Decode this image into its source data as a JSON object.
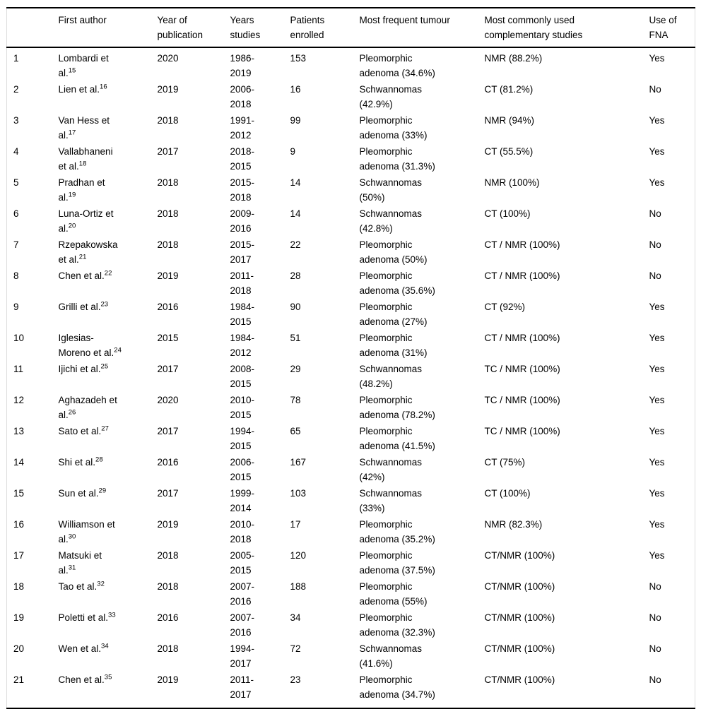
{
  "table": {
    "columns": [
      {
        "label": ""
      },
      {
        "label": "First author"
      },
      {
        "label": "Year of publication"
      },
      {
        "label": "Years studies"
      },
      {
        "label": "Patients enrolled"
      },
      {
        "label": "Most frequent tumour"
      },
      {
        "label": "Most commonly used complementary studies"
      },
      {
        "label": "Use of FNA"
      }
    ],
    "rows": [
      {
        "num": "1",
        "author": "Lombardi et al.",
        "ref": "15",
        "year": "2020",
        "years_studied": "1986-2019",
        "patients": "153",
        "tumour": "Pleomorphic adenoma (34.6%)",
        "complementary": "NMR (88.2%)",
        "fna": "Yes"
      },
      {
        "num": "2",
        "author": "Lien et al.",
        "ref": "16",
        "year": "2019",
        "years_studied": "2006-2018",
        "patients": "16",
        "tumour": "Schwannomas (42.9%)",
        "complementary": "CT (81.2%)",
        "fna": "No"
      },
      {
        "num": "3",
        "author": "Van Hess et al.",
        "ref": "17",
        "year": "2018",
        "years_studied": "1991-2012",
        "patients": "99",
        "tumour": "Pleomorphic adenoma (33%)",
        "complementary": "NMR (94%)",
        "fna": "Yes"
      },
      {
        "num": "4",
        "author": "Vallabhaneni et al.",
        "ref": "18",
        "year": "2017",
        "years_studied": "2018-2015",
        "patients": "9",
        "tumour": "Pleomorphic adenoma (31.3%)",
        "complementary": "CT (55.5%)",
        "fna": "Yes"
      },
      {
        "num": "5",
        "author": "Pradhan et al.",
        "ref": "19",
        "year": "2018",
        "years_studied": "2015-2018",
        "patients": "14",
        "tumour": "Schwannomas (50%)",
        "complementary": "NMR (100%)",
        "fna": "Yes"
      },
      {
        "num": "6",
        "author": "Luna-Ortiz et al.",
        "ref": "20",
        "year": "2018",
        "years_studied": "2009-2016",
        "patients": "14",
        "tumour": "Schwannomas (42.8%)",
        "complementary": "CT (100%)",
        "fna": "No"
      },
      {
        "num": "7",
        "author": "Rzepakowska et al.",
        "ref": "21",
        "year": "2018",
        "years_studied": "2015-2017",
        "patients": "22",
        "tumour": "Pleomorphic adenoma (50%)",
        "complementary": "CT / NMR (100%)",
        "fna": "No"
      },
      {
        "num": "8",
        "author": "Chen et al.",
        "ref": "22",
        "year": "2019",
        "years_studied": "2011-2018",
        "patients": "28",
        "tumour": "Pleomorphic adenoma (35.6%)",
        "complementary": "CT / NMR (100%)",
        "fna": "No"
      },
      {
        "num": "9",
        "author": "Grilli et al.",
        "ref": "23",
        "year": "2016",
        "years_studied": "1984-2015",
        "patients": "90",
        "tumour": "Pleomorphic adenoma (27%)",
        "complementary": "CT (92%)",
        "fna": "Yes"
      },
      {
        "num": "10",
        "author": "Iglesias-Moreno et al.",
        "ref": "24",
        "year": "2015",
        "years_studied": "1984-2012",
        "patients": "51",
        "tumour": "Pleomorphic adenoma (31%)",
        "complementary": "CT / NMR (100%)",
        "fna": "Yes"
      },
      {
        "num": "11",
        "author": "Ijichi et al.",
        "ref": "25",
        "year": "2017",
        "years_studied": "2008-2015",
        "patients": "29",
        "tumour": "Schwannomas (48.2%)",
        "complementary": "TC / NMR (100%)",
        "fna": "Yes"
      },
      {
        "num": "12",
        "author": "Aghazadeh et al.",
        "ref": "26",
        "year": "2020",
        "years_studied": "2010-2015",
        "patients": "78",
        "tumour": "Pleomorphic adenoma (78.2%)",
        "complementary": "TC / NMR (100%)",
        "fna": "Yes"
      },
      {
        "num": "13",
        "author": "Sato et al.",
        "ref": "27",
        "year": "2017",
        "years_studied": "1994-2015",
        "patients": "65",
        "tumour": "Pleomorphic adenoma (41.5%)",
        "complementary": "TC / NMR (100%)",
        "fna": "Yes"
      },
      {
        "num": "14",
        "author": "Shi et al.",
        "ref": "28",
        "year": "2016",
        "years_studied": "2006-2015",
        "patients": "167",
        "tumour": "Schwannomas (42%)",
        "complementary": "CT (75%)",
        "fna": "Yes"
      },
      {
        "num": "15",
        "author": "Sun et al.",
        "ref": "29",
        "year": "2017",
        "years_studied": "1999-2014",
        "patients": "103",
        "tumour": "Schwannomas (33%)",
        "complementary": "CT (100%)",
        "fna": "Yes"
      },
      {
        "num": "16",
        "author": "Williamson et al.",
        "ref": "30",
        "year": "2019",
        "years_studied": "2010-2018",
        "patients": "17",
        "tumour": "Pleomorphic adenoma (35.2%)",
        "complementary": "NMR (82.3%)",
        "fna": "Yes"
      },
      {
        "num": "17",
        "author": "Matsuki et al.",
        "ref": "31",
        "year": "2018",
        "years_studied": "2005-2015",
        "patients": "120",
        "tumour": "Pleomorphic adenoma (37.5%)",
        "complementary": "CT/NMR (100%)",
        "fna": "Yes"
      },
      {
        "num": "18",
        "author": "Tao et al.",
        "ref": "32",
        "year": "2018",
        "years_studied": "2007-2016",
        "patients": "188",
        "tumour": "Pleomorphic adenoma (55%)",
        "complementary": "CT/NMR (100%)",
        "fna": "No"
      },
      {
        "num": "19",
        "author": "Poletti et al.",
        "ref": "33",
        "year": "2016",
        "years_studied": "2007-2016",
        "patients": "34",
        "tumour": "Pleomorphic adenoma (32.3%)",
        "complementary": "CT/NMR (100%)",
        "fna": "No"
      },
      {
        "num": "20",
        "author": "Wen et al.",
        "ref": "34",
        "year": "2018",
        "years_studied": "1994-2017",
        "patients": "72",
        "tumour": "Schwannomas (41.6%)",
        "complementary": "CT/NMR (100%)",
        "fna": "No"
      },
      {
        "num": "21",
        "author": "Chen et al.",
        "ref": "35",
        "year": "2019",
        "years_studied": "2011-2017",
        "patients": "23",
        "tumour": "Pleomorphic adenoma (34.7%)",
        "complementary": "CT/NMR (100%)",
        "fna": "No"
      }
    ]
  }
}
